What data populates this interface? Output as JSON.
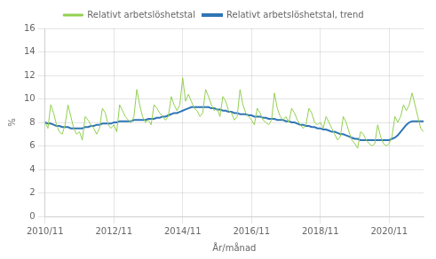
{
  "chart_data": {
    "type": "line",
    "xlabel": "År/månad",
    "ylabel": "%",
    "categories": [
      "2010/11",
      null,
      null,
      null,
      null,
      null,
      null,
      null,
      null,
      null,
      null,
      null,
      null,
      null,
      null,
      null,
      null,
      null,
      null,
      null,
      null,
      null,
      null,
      null,
      "2012/11",
      null,
      null,
      null,
      null,
      null,
      null,
      null,
      null,
      null,
      null,
      null,
      null,
      null,
      null,
      null,
      null,
      null,
      null,
      null,
      null,
      null,
      null,
      null,
      "2014/11",
      null,
      null,
      null,
      null,
      null,
      null,
      null,
      null,
      null,
      null,
      null,
      null,
      null,
      null,
      null,
      null,
      null,
      null,
      null,
      null,
      null,
      null,
      null,
      "2016/11",
      null,
      null,
      null,
      null,
      null,
      null,
      null,
      null,
      null,
      null,
      null,
      null,
      null,
      null,
      null,
      null,
      null,
      null,
      null,
      null,
      null,
      null,
      null,
      "2018/11",
      null,
      null,
      null,
      null,
      null,
      null,
      null,
      null,
      null,
      null,
      null,
      null,
      null,
      null,
      null,
      null,
      null,
      null,
      null,
      null,
      null,
      null,
      null,
      "2020/11",
      null,
      null,
      null,
      null,
      null,
      null,
      null,
      null,
      null,
      null,
      null,
      null
    ],
    "series": [
      {
        "name": "Relativt arbetslöshetstal",
        "color": "#92d050",
        "values": [
          8.0,
          7.5,
          9.5,
          8.8,
          7.8,
          7.2,
          7.0,
          7.8,
          9.5,
          8.5,
          7.5,
          7.0,
          7.2,
          6.5,
          8.5,
          8.2,
          7.8,
          7.5,
          7.0,
          7.5,
          9.2,
          8.8,
          7.8,
          7.5,
          7.8,
          7.2,
          9.5,
          9.0,
          8.5,
          8.2,
          8.0,
          8.5,
          10.8,
          9.5,
          8.5,
          8.0,
          8.2,
          7.8,
          9.5,
          9.2,
          8.8,
          8.5,
          8.2,
          8.5,
          10.2,
          9.5,
          9.0,
          9.5,
          11.8,
          9.8,
          10.4,
          9.8,
          9.2,
          9.0,
          8.5,
          8.8,
          10.8,
          10.2,
          9.5,
          9.0,
          9.2,
          8.5,
          10.2,
          9.8,
          9.0,
          8.8,
          8.2,
          8.5,
          10.8,
          9.5,
          8.8,
          8.5,
          8.2,
          7.8,
          9.2,
          8.8,
          8.2,
          8.0,
          7.8,
          8.2,
          10.5,
          9.2,
          8.5,
          8.2,
          8.5,
          8.0,
          9.2,
          8.8,
          8.2,
          7.8,
          7.5,
          7.8,
          9.2,
          8.8,
          8.0,
          7.8,
          8.0,
          7.5,
          8.5,
          8.0,
          7.5,
          7.0,
          6.5,
          6.8,
          8.5,
          8.0,
          7.2,
          6.5,
          6.2,
          5.8,
          7.2,
          7.0,
          6.5,
          6.2,
          6.0,
          6.2,
          7.8,
          6.8,
          6.2,
          6.0,
          6.2,
          6.8,
          8.5,
          8.0,
          8.5,
          9.5,
          9.0,
          9.5,
          10.5,
          9.5,
          8.5,
          7.5,
          7.2
        ]
      },
      {
        "name": "Relativt arbetslöshetstal, trend",
        "color": "#2e75b6",
        "values": [
          8.0,
          7.9,
          7.9,
          7.8,
          7.7,
          7.7,
          7.6,
          7.6,
          7.6,
          7.5,
          7.5,
          7.5,
          7.5,
          7.5,
          7.6,
          7.6,
          7.7,
          7.7,
          7.8,
          7.8,
          7.9,
          7.9,
          7.9,
          7.9,
          8.0,
          8.0,
          8.1,
          8.1,
          8.1,
          8.1,
          8.1,
          8.2,
          8.2,
          8.2,
          8.2,
          8.2,
          8.3,
          8.3,
          8.3,
          8.4,
          8.4,
          8.5,
          8.5,
          8.6,
          8.7,
          8.8,
          8.8,
          8.9,
          9.0,
          9.1,
          9.2,
          9.3,
          9.3,
          9.3,
          9.3,
          9.3,
          9.3,
          9.3,
          9.2,
          9.2,
          9.1,
          9.1,
          9.0,
          9.0,
          8.9,
          8.9,
          8.8,
          8.8,
          8.7,
          8.7,
          8.7,
          8.6,
          8.6,
          8.5,
          8.5,
          8.5,
          8.4,
          8.4,
          8.3,
          8.3,
          8.3,
          8.2,
          8.2,
          8.2,
          8.1,
          8.1,
          8.0,
          8.0,
          7.9,
          7.8,
          7.8,
          7.7,
          7.7,
          7.6,
          7.6,
          7.5,
          7.5,
          7.4,
          7.4,
          7.3,
          7.2,
          7.2,
          7.1,
          7.0,
          7.0,
          6.9,
          6.8,
          6.7,
          6.6,
          6.6,
          6.5,
          6.5,
          6.5,
          6.5,
          6.5,
          6.5,
          6.5,
          6.5,
          6.5,
          6.5,
          6.5,
          6.6,
          6.7,
          6.9,
          7.2,
          7.5,
          7.8,
          8.0,
          8.1,
          8.1,
          8.1,
          8.1,
          8.1
        ]
      }
    ],
    "ylim": [
      0,
      16
    ],
    "yticks": [
      0,
      2,
      4,
      6,
      8,
      10,
      12,
      14,
      16
    ],
    "grid": true,
    "legend": "top"
  }
}
